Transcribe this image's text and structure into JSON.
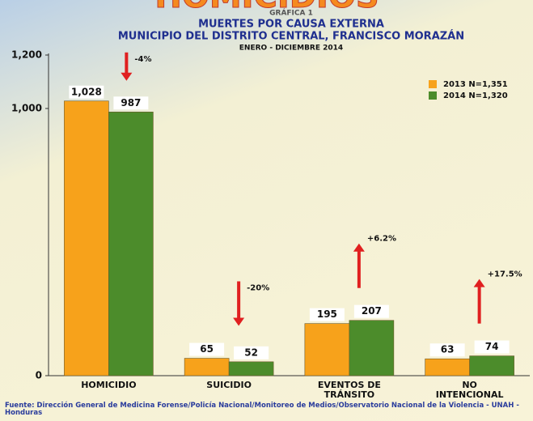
{
  "chart_data": {
    "type": "bar",
    "header": "HOMICIDIOS",
    "kicker": "GRÁFICA 1",
    "title": "MUERTES POR CAUSA EXTERNA",
    "subtitle": "MUNICIPIO DEL DISTRITO CENTRAL, FRANCISCO MORAZÁN",
    "period": "ENERO - DICIEMBRE 2014",
    "categories": [
      "HOMICIDIO",
      "SUICIDIO",
      "EVENTOS DE TRÁNSITO",
      "NO INTENCIONAL"
    ],
    "series": [
      {
        "name": "2013 N=1,351",
        "color": "#f7a21b",
        "values": [
          1028,
          65,
          195,
          63
        ],
        "value_labels": [
          "1,028",
          "65",
          "195",
          "63"
        ]
      },
      {
        "name": "2014 N=1,320",
        "color": "#4c8c2b",
        "values": [
          987,
          52,
          207,
          74
        ]
      }
    ],
    "ylim": [
      0,
      1200
    ],
    "yticks": [
      0,
      {
        "value": 1000,
        "label": "1,000"
      },
      {
        "value": 1200,
        "label": "1,200"
      }
    ],
    "annotations": [
      {
        "text": "-4%",
        "direction": "down"
      },
      {
        "text": "-20%",
        "direction": "down"
      },
      {
        "text": "+6.2%",
        "direction": "up"
      },
      {
        "text": "+17.5%",
        "direction": "up"
      }
    ],
    "source": "Fuente: Dirección General de Medicina Forense/Policía Nacional/Monitoreo de Medios/Observatorio Nacional de la Violencia - UNAH - Honduras"
  }
}
